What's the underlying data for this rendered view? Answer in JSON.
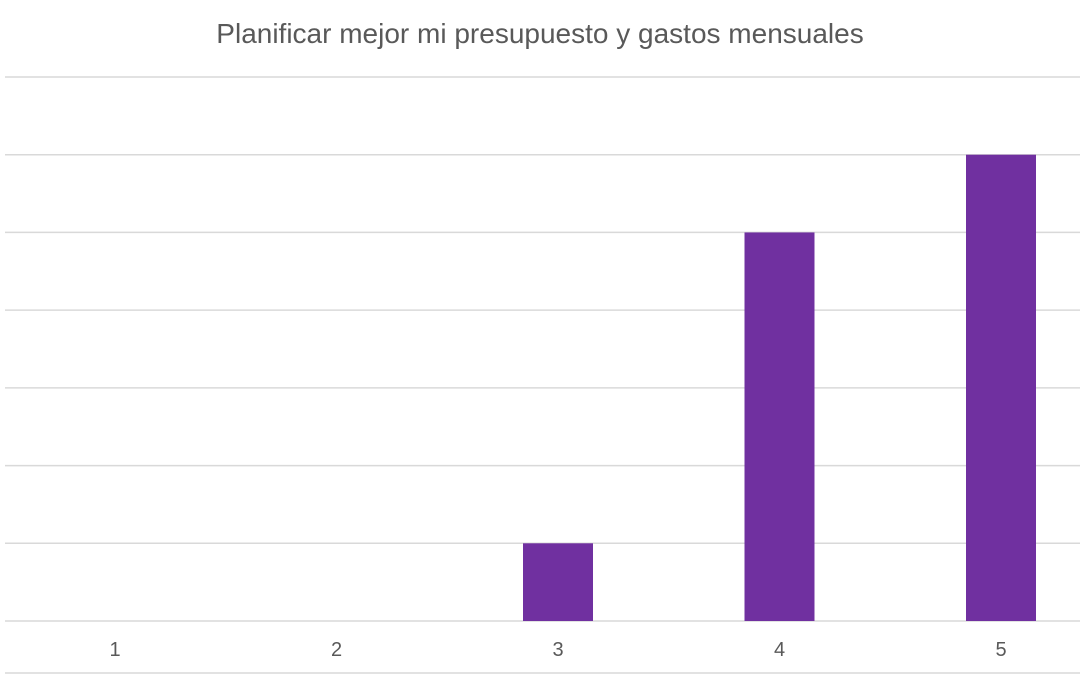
{
  "chart_data": {
    "type": "bar",
    "title": "Planificar mejor mi presupuesto y gastos mensuales",
    "categories": [
      "1",
      "2",
      "3",
      "4",
      "5"
    ],
    "values": [
      0,
      0,
      1,
      5,
      6
    ],
    "xlabel": "",
    "ylabel": "",
    "ylim": [
      0,
      7
    ],
    "grid": true,
    "legend": "none",
    "bar_color": "#7030A0",
    "grid_color": "#D9D9D9",
    "tick_color": "#595959"
  }
}
